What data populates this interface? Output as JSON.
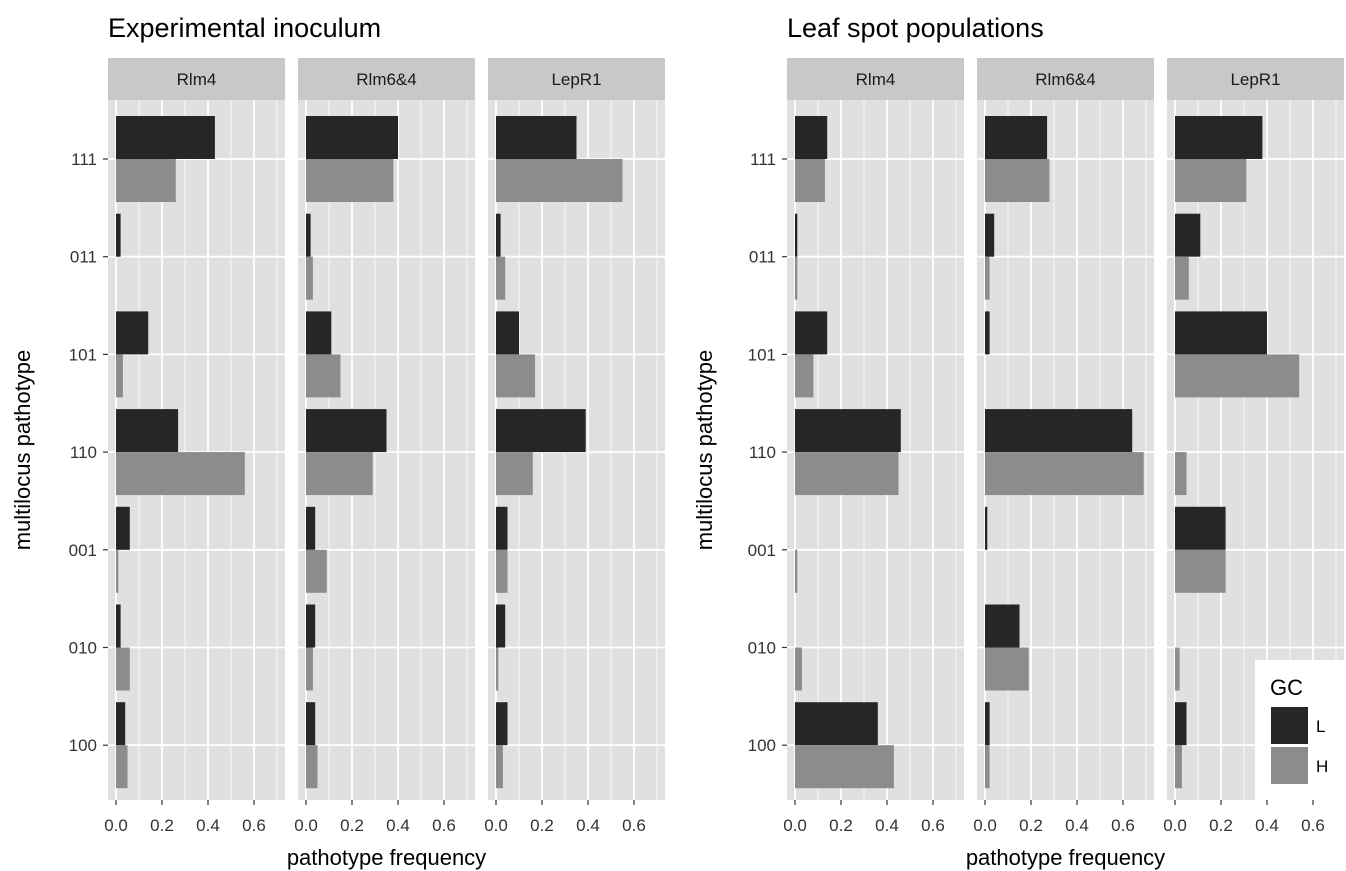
{
  "chart_data": [
    {
      "type": "bar",
      "orientation": "horizontal",
      "title": "Experimental inoculum",
      "xlabel": "pathotype frequency",
      "ylabel": "multilocus pathotype",
      "xlim": [
        0,
        0.72
      ],
      "xticks": [
        "0.0",
        "0.2",
        "0.4",
        "0.6"
      ],
      "categories": [
        "111",
        "011",
        "101",
        "110",
        "001",
        "010",
        "100"
      ],
      "grid": true,
      "panels": [
        {
          "name": "Rlm4",
          "series": [
            {
              "name": "L",
              "values": [
                0.43,
                0.02,
                0.14,
                0.27,
                0.06,
                0.02,
                0.04
              ]
            },
            {
              "name": "H",
              "values": [
                0.26,
                0.0,
                0.03,
                0.56,
                0.01,
                0.06,
                0.05
              ]
            }
          ]
        },
        {
          "name": "Rlm6&4",
          "series": [
            {
              "name": "L",
              "values": [
                0.4,
                0.02,
                0.11,
                0.35,
                0.04,
                0.04,
                0.04
              ]
            },
            {
              "name": "H",
              "values": [
                0.38,
                0.03,
                0.15,
                0.29,
                0.09,
                0.03,
                0.05
              ]
            }
          ]
        },
        {
          "name": "LepR1",
          "series": [
            {
              "name": "L",
              "values": [
                0.35,
                0.02,
                0.1,
                0.39,
                0.05,
                0.04,
                0.05
              ]
            },
            {
              "name": "H",
              "values": [
                0.55,
                0.04,
                0.17,
                0.16,
                0.05,
                0.01,
                0.03
              ]
            }
          ]
        }
      ]
    },
    {
      "type": "bar",
      "orientation": "horizontal",
      "title": "Leaf spot populations",
      "xlabel": "pathotype frequency",
      "ylabel": "multilocus pathotype",
      "xlim": [
        0,
        0.72
      ],
      "xticks": [
        "0.0",
        "0.2",
        "0.4",
        "0.6"
      ],
      "categories": [
        "111",
        "011",
        "101",
        "110",
        "001",
        "010",
        "100"
      ],
      "grid": true,
      "legend": {
        "title": "GC",
        "position": "bottom-right",
        "labels": [
          "L",
          "H"
        ]
      },
      "panels": [
        {
          "name": "Rlm4",
          "series": [
            {
              "name": "L",
              "values": [
                0.14,
                0.01,
                0.14,
                0.46,
                0.0,
                0.0,
                0.36
              ]
            },
            {
              "name": "H",
              "values": [
                0.13,
                0.01,
                0.08,
                0.45,
                0.01,
                0.03,
                0.43
              ]
            }
          ]
        },
        {
          "name": "Rlm6&4",
          "series": [
            {
              "name": "L",
              "values": [
                0.27,
                0.04,
                0.02,
                0.64,
                0.01,
                0.15,
                0.02
              ]
            },
            {
              "name": "H",
              "values": [
                0.28,
                0.02,
                0.0,
                0.69,
                0.0,
                0.19,
                0.02
              ]
            }
          ]
        },
        {
          "name": "LepR1",
          "series": [
            {
              "name": "L",
              "values": [
                0.38,
                0.11,
                0.4,
                0.0,
                0.22,
                0.0,
                0.05
              ]
            },
            {
              "name": "H",
              "values": [
                0.31,
                0.06,
                0.54,
                0.05,
                0.22,
                0.02,
                0.03
              ]
            }
          ]
        }
      ]
    }
  ],
  "colors": {
    "L": "#262626",
    "H": "#8c8c8c",
    "panel_bg": "#e0e0e0",
    "strip_bg": "#c8c8c8",
    "grid": "#ffffff"
  }
}
